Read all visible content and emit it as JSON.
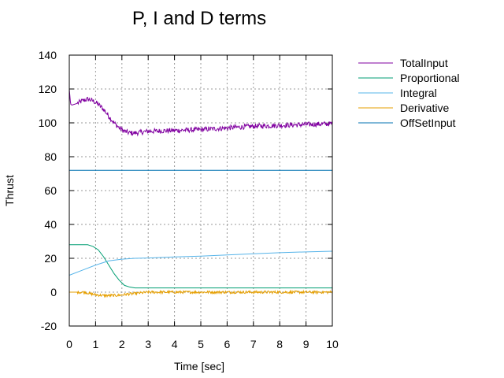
{
  "chart_data": {
    "type": "line",
    "title": "P, I and D terms",
    "xlabel": "Time [sec]",
    "ylabel": "Thrust",
    "xlim": [
      0,
      10
    ],
    "ylim": [
      -20,
      140
    ],
    "xticks": [
      0,
      1,
      2,
      3,
      4,
      5,
      6,
      7,
      8,
      9,
      10
    ],
    "yticks": [
      -20,
      0,
      20,
      40,
      60,
      80,
      100,
      120,
      140
    ],
    "grid": true,
    "legend_position": "right",
    "series": [
      {
        "name": "TotalInput",
        "color": "#8000a0",
        "noise": 1.5,
        "x": [
          0,
          0.05,
          0.1,
          0.3,
          0.5,
          0.7,
          0.9,
          1.1,
          1.3,
          1.5,
          1.7,
          1.9,
          2.1,
          2.3,
          2.5,
          3,
          4,
          5,
          6,
          7,
          8,
          9,
          10
        ],
        "y": [
          120,
          111,
          110.5,
          111.5,
          113,
          114,
          113,
          111,
          108,
          104,
          100,
          97,
          95,
          94,
          94,
          95,
          95.5,
          96,
          97,
          98,
          98.5,
          99,
          99.5
        ]
      },
      {
        "name": "Proportional",
        "color": "#009e73",
        "noise": 0,
        "x": [
          0,
          0.7,
          0.9,
          1.1,
          1.3,
          1.5,
          1.7,
          1.9,
          2.1,
          2.3,
          2.5,
          3,
          4,
          10
        ],
        "y": [
          28,
          28,
          27,
          25,
          21,
          16,
          11,
          7,
          4,
          3,
          2.5,
          2.5,
          2.5,
          2.5
        ]
      },
      {
        "name": "Integral",
        "color": "#56b4e9",
        "noise": 0,
        "x": [
          0,
          0.5,
          1,
          1.5,
          2,
          2.5,
          3,
          4,
          5,
          6,
          7,
          8,
          9,
          10
        ],
        "y": [
          10,
          13,
          16,
          18.5,
          19.5,
          20,
          20.2,
          20.8,
          21.3,
          22,
          22.7,
          23.3,
          23.8,
          24.2
        ]
      },
      {
        "name": "Derivative",
        "color": "#e69f00",
        "noise": 0.8,
        "x": [
          0,
          0.6,
          0.8,
          1,
          1.3,
          1.6,
          1.9,
          2.2,
          2.5,
          3,
          4,
          5,
          6,
          7,
          8,
          9,
          10
        ],
        "y": [
          0,
          0,
          -1,
          -1.5,
          -2,
          -2,
          -1.8,
          -1.2,
          -0.8,
          0,
          0,
          0,
          0,
          0,
          0,
          0,
          0
        ]
      },
      {
        "name": "OffSetInput",
        "color": "#0072b2",
        "noise": 0,
        "x": [
          0,
          10
        ],
        "y": [
          72,
          72
        ]
      }
    ]
  }
}
